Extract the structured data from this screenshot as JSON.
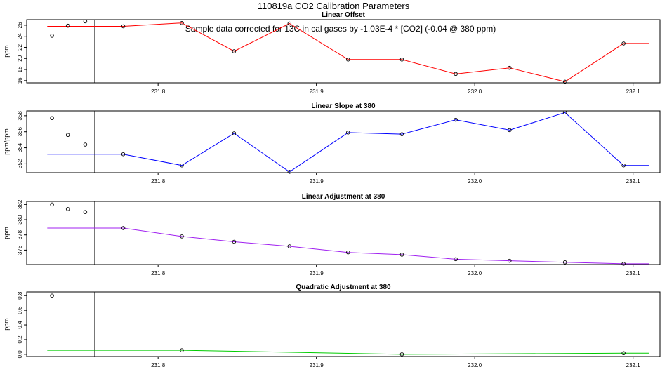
{
  "title": "110819a   CO2 Calibration Parameters",
  "chart_data": [
    {
      "type": "line",
      "title": "Linear Offset",
      "annotation": "Sample data corrected for 13C in cal gases by -1.03E-4 * [CO2] (-0.04 @ 380 ppm)",
      "ylabel": "ppm",
      "xlim": [
        231.717,
        232.117
      ],
      "ylim": [
        15.6,
        27.0
      ],
      "xticks": [
        231.8,
        231.9,
        232.0,
        232.1
      ],
      "yticks": [
        16,
        18,
        20,
        22,
        24,
        26
      ],
      "vline_x": 231.76,
      "color": "#ff0000",
      "line_x": [
        231.73,
        231.778,
        231.815,
        231.848,
        231.883,
        231.92,
        231.954,
        231.988,
        232.022,
        232.057,
        232.094,
        232.11
      ],
      "line_y": [
        25.8,
        25.8,
        26.4,
        21.3,
        26.3,
        19.8,
        19.8,
        17.2,
        18.3,
        15.8,
        22.7,
        22.7
      ],
      "points_x": [
        231.778,
        231.815,
        231.848,
        231.883,
        231.92,
        231.954,
        231.988,
        232.022,
        232.057,
        232.094
      ],
      "points_y": [
        25.8,
        26.4,
        21.3,
        26.3,
        19.8,
        19.8,
        17.2,
        18.3,
        15.8,
        22.7
      ],
      "extra_points_x": [
        231.733,
        231.743,
        231.754
      ],
      "extra_points_y": [
        24.1,
        25.9,
        26.7
      ]
    },
    {
      "type": "line",
      "title": "Linear Slope at 380",
      "ylabel": "ppm/ppm",
      "xlim": [
        231.717,
        232.117
      ],
      "ylim": [
        350.9,
        358.6
      ],
      "xticks": [
        231.8,
        231.9,
        232.0,
        232.1
      ],
      "yticks": [
        352,
        354,
        356,
        358
      ],
      "vline_x": 231.76,
      "color": "#0000ff",
      "line_x": [
        231.73,
        231.778,
        231.815,
        231.848,
        231.883,
        231.92,
        231.954,
        231.988,
        232.022,
        232.057,
        232.094,
        232.11
      ],
      "line_y": [
        353.2,
        353.2,
        351.8,
        355.8,
        351.0,
        355.9,
        355.7,
        357.5,
        356.2,
        358.4,
        351.8,
        351.8
      ],
      "points_x": [
        231.778,
        231.815,
        231.848,
        231.883,
        231.92,
        231.954,
        231.988,
        232.022,
        232.057,
        232.094
      ],
      "points_y": [
        353.2,
        351.8,
        355.8,
        351.0,
        355.9,
        355.7,
        357.5,
        356.2,
        358.4,
        351.8
      ],
      "extra_points_x": [
        231.733,
        231.743,
        231.754
      ],
      "extra_points_y": [
        357.7,
        355.6,
        354.4
      ]
    },
    {
      "type": "line",
      "title": "Linear Adjustment at 380",
      "ylabel": "ppm",
      "xlim": [
        231.717,
        232.117
      ],
      "ylim": [
        374.1,
        382.4
      ],
      "xticks": [
        231.8,
        231.9,
        232.0,
        232.1
      ],
      "yticks": [
        376,
        378,
        380,
        382
      ],
      "vline_x": 231.76,
      "color": "#a020f0",
      "line_x": [
        231.73,
        231.778,
        231.815,
        231.848,
        231.883,
        231.92,
        231.954,
        231.988,
        232.022,
        232.057,
        232.094,
        232.11
      ],
      "line_y": [
        378.9,
        378.9,
        377.8,
        377.1,
        376.5,
        375.7,
        375.4,
        374.8,
        374.6,
        374.4,
        374.2,
        374.2
      ],
      "points_x": [
        231.778,
        231.815,
        231.848,
        231.883,
        231.92,
        231.954,
        231.988,
        232.022,
        232.057,
        232.094
      ],
      "points_y": [
        378.9,
        377.8,
        377.1,
        376.5,
        375.7,
        375.4,
        374.8,
        374.6,
        374.4,
        374.2
      ],
      "extra_points_x": [
        231.733,
        231.743,
        231.754
      ],
      "extra_points_y": [
        382.0,
        381.4,
        381.0
      ]
    },
    {
      "type": "line",
      "title": "Quadratic Adjustment at 380",
      "ylabel": "ppm",
      "xlim": [
        231.717,
        232.117
      ],
      "ylim": [
        -0.03,
        0.85
      ],
      "xticks": [
        231.8,
        231.9,
        232.0,
        232.1
      ],
      "yticks": [
        0.0,
        0.2,
        0.4,
        0.6,
        0.8
      ],
      "ytick_labels": [
        "0.0",
        "0.2",
        "0.4",
        "0.6",
        "0.8"
      ],
      "vline_x": 231.76,
      "color": "#00cc00",
      "line_x": [
        231.73,
        231.815,
        231.954,
        232.094,
        232.11
      ],
      "line_y": [
        0.055,
        0.055,
        0.0,
        0.015,
        0.015
      ],
      "points_x": [
        231.815,
        231.954,
        232.094
      ],
      "points_y": [
        0.055,
        0.0,
        0.015
      ],
      "extra_points_x": [
        231.733
      ],
      "extra_points_y": [
        0.8
      ]
    }
  ]
}
